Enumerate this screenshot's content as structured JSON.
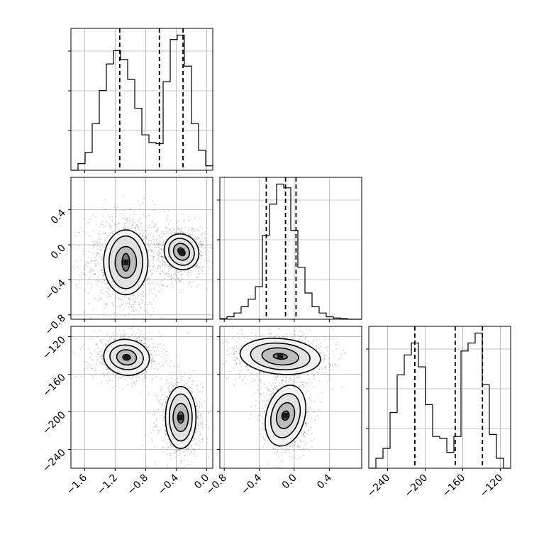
{
  "chart_data": {
    "type": "corner",
    "params": [
      {
        "ticks": [
          -1.6,
          -1.2,
          -0.8,
          -0.4,
          0.0
        ],
        "tick_labels": [
          "−1.6",
          "−1.2",
          "−0.8",
          "−0.4",
          "0.0"
        ],
        "range": [
          -1.78,
          0.08
        ]
      },
      {
        "ticks": [
          -0.8,
          -0.4,
          0.0,
          0.4
        ],
        "tick_labels": [
          "−0.8",
          "−0.4",
          "0.0",
          "0.4"
        ],
        "range": [
          -0.85,
          0.77
        ]
      },
      {
        "ticks": [
          -240,
          -200,
          -160,
          -120
        ],
        "tick_labels": [
          "−240",
          "−200",
          "−160",
          "−120"
        ],
        "range": [
          -260,
          -109
        ]
      }
    ],
    "histograms": [
      {
        "param": 0,
        "bin_edges": [
          -1.78,
          -1.687,
          -1.594,
          -1.501,
          -1.408,
          -1.315,
          -1.222,
          -1.129,
          -1.036,
          -0.943,
          -0.85,
          -0.757,
          -0.664,
          -0.571,
          -0.478,
          -0.385,
          -0.292,
          -0.199,
          -0.106,
          -0.013,
          0.08
        ],
        "counts": [
          0,
          60,
          160,
          420,
          720,
          960,
          1080,
          1000,
          820,
          560,
          320,
          250,
          240,
          800,
          1180,
          1220,
          940,
          420,
          180,
          40
        ],
        "quantiles": [
          -1.14,
          -0.62,
          -0.31
        ]
      },
      {
        "param": 1,
        "bin_edges": [
          -0.85,
          -0.769,
          -0.688,
          -0.607,
          -0.526,
          -0.445,
          -0.364,
          -0.283,
          -0.202,
          -0.121,
          -0.04,
          0.041,
          0.122,
          0.203,
          0.284,
          0.365,
          0.446,
          0.527,
          0.608,
          0.689,
          0.77
        ],
        "counts": [
          10,
          40,
          100,
          200,
          320,
          520,
          1340,
          1840,
          2160,
          2100,
          1420,
          830,
          420,
          200,
          100,
          40,
          20,
          10,
          0,
          0
        ],
        "quantiles": [
          -0.32,
          -0.1,
          0.02
        ]
      },
      {
        "param": 2,
        "bin_edges": [
          -260,
          -252.45,
          -244.9,
          -237.35,
          -229.8,
          -222.25,
          -214.7,
          -207.15,
          -199.6,
          -192.05,
          -184.5,
          -176.95,
          -169.4,
          -161.85,
          -154.3,
          -146.75,
          -139.2,
          -131.65,
          -124.1,
          -116.55,
          -109
        ],
        "counts": [
          0,
          100,
          200,
          560,
          940,
          1140,
          1260,
          1020,
          640,
          320,
          300,
          160,
          320,
          1180,
          1260,
          1360,
          840,
          340,
          100,
          0
        ],
        "quantiles": [
          -211,
          -168,
          -139
        ]
      }
    ],
    "contour_panels": [
      {
        "x_param": 0,
        "y_param": 1,
        "clusters": [
          {
            "center": [
              -1.06,
              -0.2
            ],
            "radii": [
              [
                0.29,
                0.37
              ],
              [
                0.22,
                0.3
              ],
              [
                0.14,
                0.18
              ],
              [
                0.05,
                0.1
              ]
            ],
            "angle": 0,
            "scatter_sigma": [
              0.26,
              0.3
            ],
            "n_points": 1200
          },
          {
            "center": [
              -0.33,
              -0.08
            ],
            "radii": [
              [
                0.22,
                0.21
              ],
              [
                0.16,
                0.16
              ],
              [
                0.1,
                0.1
              ],
              [
                0.04,
                0.05
              ]
            ],
            "angle": 35,
            "scatter_sigma": [
              0.16,
              0.15
            ],
            "n_points": 900
          }
        ]
      },
      {
        "x_param": 0,
        "y_param": 2,
        "clusters": [
          {
            "center": [
              -1.05,
              -142
            ],
            "radii": [
              [
                0.3,
                19
              ],
              [
                0.22,
                13
              ],
              [
                0.13,
                8
              ],
              [
                0.05,
                3
              ]
            ],
            "angle": -8,
            "scatter_sigma": [
              0.22,
              12
            ],
            "n_points": 1000
          },
          {
            "center": [
              -0.34,
              -206
            ],
            "radii": [
              [
                0.2,
                33
              ],
              [
                0.15,
                25
              ],
              [
                0.1,
                15
              ],
              [
                0.04,
                6
              ]
            ],
            "angle": 0,
            "scatter_sigma": [
              0.14,
              20
            ],
            "n_points": 1000
          }
        ]
      },
      {
        "x_param": 1,
        "y_param": 2,
        "clusters": [
          {
            "center": [
              -0.16,
              -141
            ],
            "radii": [
              [
                0.46,
                19
              ],
              [
                0.34,
                14
              ],
              [
                0.21,
                9
              ],
              [
                0.08,
                3
              ]
            ],
            "angle": -5,
            "scatter_sigma": [
              0.3,
              13
            ],
            "n_points": 1000
          },
          {
            "center": [
              -0.1,
              -204
            ],
            "radii": [
              [
                0.22,
                33
              ],
              [
                0.16,
                24
              ],
              [
                0.1,
                14
              ],
              [
                0.04,
                5
              ]
            ],
            "angle": -15,
            "scatter_sigma": [
              0.14,
              20
            ],
            "n_points": 1000
          }
        ]
      }
    ],
    "grid": true
  }
}
